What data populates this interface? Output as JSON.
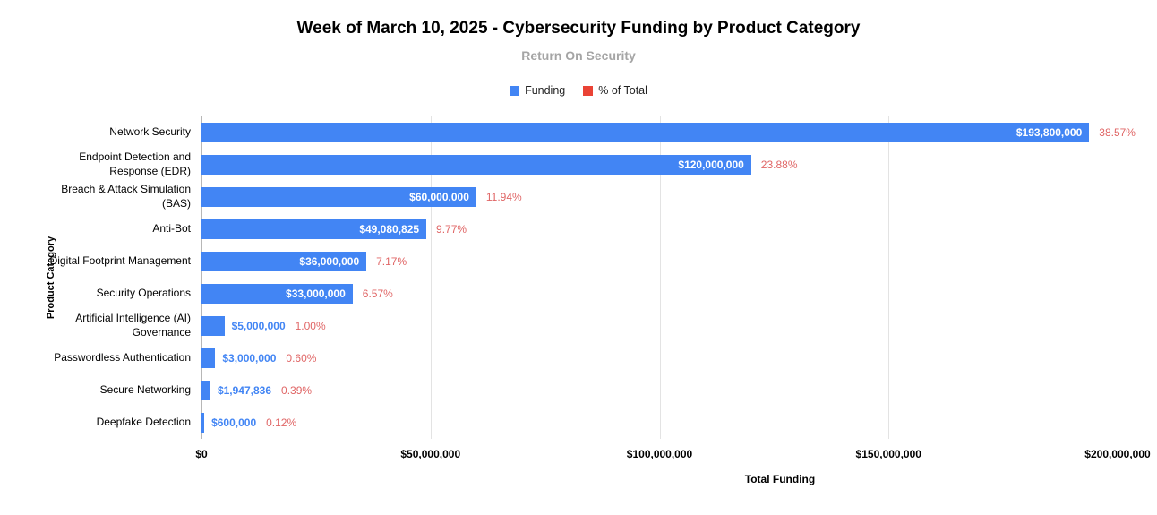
{
  "chart_data": {
    "type": "bar",
    "orientation": "horizontal",
    "title": "Week of March 10, 2025 - Cybersecurity Funding by Product Category",
    "subtitle": "Return On Security",
    "xlabel": "Total Funding",
    "ylabel": "Product Category",
    "xlim": [
      0,
      200000000
    ],
    "grid": true,
    "bar_color": "#4285f4",
    "pct_label_color": "#e06666",
    "value_label_inside_color": "#ffffff",
    "legend": [
      {
        "label": "Funding",
        "color": "#4285f4"
      },
      {
        "label": "% of Total",
        "color": "#ea4335"
      }
    ],
    "x_ticks": [
      {
        "value": 0,
        "label": "$0"
      },
      {
        "value": 50000000,
        "label": "$50,000,000"
      },
      {
        "value": 100000000,
        "label": "$100,000,000"
      },
      {
        "value": 150000000,
        "label": "$150,000,000"
      },
      {
        "value": 200000000,
        "label": "$200,000,000"
      }
    ],
    "categories": [
      "Network Security",
      "Endpoint Detection and Response (EDR)",
      "Breach & Attack Simulation (BAS)",
      "Anti-Bot",
      "Digital Footprint Management",
      "Security Operations",
      "Artificial Intelligence (AI) Governance",
      "Passwordless Authentication",
      "Secure Networking",
      "Deepfake Detection"
    ],
    "series": [
      {
        "name": "Funding",
        "values": [
          193800000,
          120000000,
          60000000,
          49080825,
          36000000,
          33000000,
          5000000,
          3000000,
          1947836,
          600000
        ],
        "labels": [
          "$193,800,000",
          "$120,000,000",
          "$60,000,000",
          "$49,080,825",
          "$36,000,000",
          "$33,000,000",
          "$5,000,000",
          "$3,000,000",
          "$1,947,836",
          "$600,000"
        ]
      },
      {
        "name": "% of Total",
        "values": [
          38.57,
          23.88,
          11.94,
          9.77,
          7.17,
          6.57,
          1.0,
          0.6,
          0.39,
          0.12
        ],
        "labels": [
          "38.57%",
          "23.88%",
          "11.94%",
          "9.77%",
          "7.17%",
          "6.57%",
          "1.00%",
          "0.60%",
          "0.39%",
          "0.12%"
        ]
      }
    ]
  }
}
